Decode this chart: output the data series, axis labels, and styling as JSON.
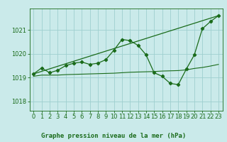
{
  "title": "Graphe pression niveau de la mer (hPa)",
  "bg_color": "#caeaea",
  "grid_color": "#9ecfcf",
  "line_color": "#1a6b1a",
  "xlim": [
    -0.5,
    23.5
  ],
  "ylim": [
    1017.6,
    1021.9
  ],
  "yticks": [
    1018,
    1019,
    1020,
    1021
  ],
  "xticks": [
    0,
    1,
    2,
    3,
    4,
    5,
    6,
    7,
    8,
    9,
    10,
    11,
    12,
    13,
    14,
    15,
    16,
    17,
    18,
    19,
    20,
    21,
    22,
    23
  ],
  "series1_x": [
    0,
    1,
    2,
    3,
    4,
    5,
    6,
    7,
    8,
    9,
    10,
    11,
    12,
    13,
    14,
    15,
    16,
    17,
    18,
    19,
    20,
    21,
    22,
    23
  ],
  "series1_y": [
    1019.15,
    1019.4,
    1019.2,
    1019.3,
    1019.5,
    1019.6,
    1019.65,
    1019.55,
    1019.6,
    1019.75,
    1020.15,
    1020.6,
    1020.55,
    1020.35,
    1019.95,
    1019.2,
    1019.05,
    1018.75,
    1018.7,
    1019.35,
    1019.95,
    1021.05,
    1021.35,
    1021.6
  ],
  "series2_x": [
    0,
    1,
    2,
    3,
    4,
    5,
    6,
    7,
    8,
    9,
    10,
    11,
    12,
    13,
    14,
    15,
    16,
    17,
    18,
    19,
    20,
    21,
    22,
    23
  ],
  "series2_y": [
    1019.05,
    1019.1,
    1019.1,
    1019.1,
    1019.12,
    1019.13,
    1019.14,
    1019.15,
    1019.16,
    1019.17,
    1019.18,
    1019.2,
    1019.22,
    1019.23,
    1019.24,
    1019.25,
    1019.27,
    1019.28,
    1019.29,
    1019.32,
    1019.38,
    1019.42,
    1019.48,
    1019.55
  ],
  "series3_x": [
    0,
    23
  ],
  "series3_y": [
    1019.15,
    1021.6
  ],
  "tick_fontsize": 6,
  "title_fontsize": 6.5
}
